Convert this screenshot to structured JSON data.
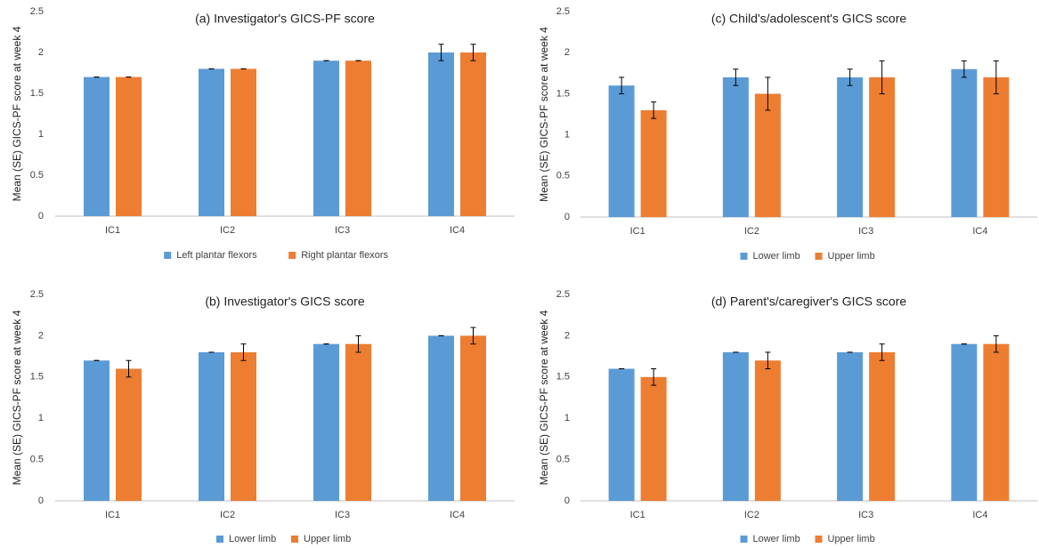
{
  "colors": {
    "blue": "#5b9bd5",
    "orange": "#ed7d31",
    "axis": "#bfbfbf",
    "errorbar": "#000000"
  },
  "chart_data": [
    {
      "type": "bar",
      "title": "(a) Investigator's GICS-PF score",
      "ylabel": "Mean (SE) GICS-PF score at week 4",
      "xlabel": "",
      "ylim": [
        0,
        2.5
      ],
      "yticks": [
        "0",
        "0.5",
        "1",
        "1.5",
        "2",
        "2.5"
      ],
      "categories": [
        "IC1",
        "IC2",
        "IC3",
        "IC4"
      ],
      "series": [
        {
          "name": "Left plantar flexors",
          "values": [
            1.7,
            1.8,
            1.9,
            2.0
          ],
          "se": [
            0.0,
            0.0,
            0.0,
            0.1
          ]
        },
        {
          "name": "Right plantar flexors",
          "values": [
            1.7,
            1.8,
            1.9,
            2.0
          ],
          "se": [
            0.0,
            0.0,
            0.0,
            0.1
          ]
        }
      ],
      "legend": "bottom",
      "grid": false
    },
    {
      "type": "bar",
      "title": "(c) Child's/adolescent's GICS score",
      "ylabel": "Mean (SE) GICS-PF score at week 4",
      "xlabel": "",
      "ylim": [
        0,
        2.5
      ],
      "yticks": [
        "0",
        "0.5",
        "1",
        "1.5",
        "2",
        "2.5"
      ],
      "categories": [
        "IC1",
        "IC2",
        "IC3",
        "IC4"
      ],
      "series": [
        {
          "name": "Lower limb",
          "values": [
            1.6,
            1.7,
            1.7,
            1.8
          ],
          "se": [
            0.1,
            0.1,
            0.1,
            0.1
          ]
        },
        {
          "name": "Upper limb",
          "values": [
            1.3,
            1.5,
            1.7,
            1.7
          ],
          "se": [
            0.1,
            0.2,
            0.2,
            0.2
          ]
        }
      ],
      "legend": "bottom",
      "grid": false
    },
    {
      "type": "bar",
      "title": "(b) Investigator's GICS score",
      "ylabel": "Mean (SE) GICS-PF score at week 4",
      "xlabel": "",
      "ylim": [
        0,
        2.5
      ],
      "yticks": [
        "0",
        "0.5",
        "1",
        "1.5",
        "2",
        "2.5"
      ],
      "categories": [
        "IC1",
        "IC2",
        "IC3",
        "IC4"
      ],
      "series": [
        {
          "name": "Lower limb",
          "values": [
            1.7,
            1.8,
            1.9,
            2.0
          ],
          "se": [
            0.0,
            0.0,
            0.0,
            0.0
          ]
        },
        {
          "name": "Upper limb",
          "values": [
            1.6,
            1.8,
            1.9,
            2.0
          ],
          "se": [
            0.1,
            0.1,
            0.1,
            0.1
          ]
        }
      ],
      "legend": "bottom",
      "grid": false
    },
    {
      "type": "bar",
      "title": "(d) Parent's/caregiver's GICS score",
      "ylabel": "Mean (SE) GICS-PF score at week 4",
      "xlabel": "",
      "ylim": [
        0,
        2.5
      ],
      "yticks": [
        "0",
        "0.5",
        "1",
        "1.5",
        "2",
        "2.5"
      ],
      "categories": [
        "IC1",
        "IC2",
        "IC3",
        "IC4"
      ],
      "series": [
        {
          "name": "Lower limb",
          "values": [
            1.6,
            1.8,
            1.8,
            1.9
          ],
          "se": [
            0.0,
            0.0,
            0.0,
            0.0
          ]
        },
        {
          "name": "Upper limb",
          "values": [
            1.5,
            1.7,
            1.8,
            1.9
          ],
          "se": [
            0.1,
            0.1,
            0.1,
            0.1
          ]
        }
      ],
      "legend": "bottom",
      "grid": false
    }
  ]
}
